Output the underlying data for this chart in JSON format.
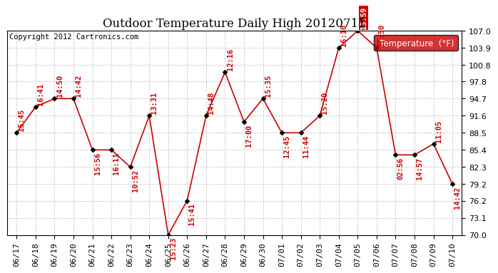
{
  "title": "Outdoor Temperature Daily High 20120711",
  "copyright": "Copyright 2012 Cartronics.com",
  "legend_label": "Temperature  (°F)",
  "legend_bg": "#cc0000",
  "legend_text_color": "#ffffff",
  "background_color": "#ffffff",
  "plot_bg": "#ffffff",
  "line_color": "#cc0000",
  "marker_color": "#000000",
  "label_color": "#cc0000",
  "grid_color": "#c8c8c8",
  "dates": [
    "06/17",
    "06/18",
    "06/19",
    "06/20",
    "06/21",
    "06/22",
    "06/23",
    "06/24",
    "06/25",
    "06/26",
    "06/27",
    "06/28",
    "06/29",
    "06/30",
    "07/01",
    "07/02",
    "07/03",
    "07/04",
    "07/05",
    "07/06",
    "07/07",
    "07/08",
    "07/09",
    "07/10"
  ],
  "values": [
    88.5,
    93.2,
    94.7,
    94.7,
    85.4,
    85.4,
    82.3,
    91.6,
    70.0,
    76.2,
    91.6,
    99.5,
    90.5,
    94.7,
    88.5,
    88.5,
    91.6,
    103.9,
    107.0,
    103.9,
    84.5,
    84.5,
    86.5,
    79.2
  ],
  "time_labels": [
    "15:45",
    "16:41",
    "14:50",
    "14:42",
    "15:56",
    "16:11",
    "10:52",
    "13:31",
    "15:23",
    "15:41",
    "14:48",
    "12:16",
    "17:00",
    "15:35",
    "12:45",
    "11:44",
    "15:20",
    "16:10",
    "15:59",
    "12:50",
    "02:56",
    "14:57",
    "11:05",
    "14:42"
  ],
  "label_above": [
    true,
    true,
    true,
    true,
    false,
    false,
    false,
    true,
    false,
    false,
    true,
    true,
    false,
    true,
    false,
    false,
    true,
    true,
    true,
    true,
    false,
    false,
    true,
    false
  ],
  "ylim_min": 70.0,
  "ylim_max": 107.0,
  "yticks": [
    70.0,
    73.1,
    76.2,
    79.2,
    82.3,
    85.4,
    88.5,
    91.6,
    94.7,
    97.8,
    100.8,
    103.9,
    107.0
  ],
  "title_fontsize": 12,
  "copyright_fontsize": 7.5,
  "label_fontsize": 7.5,
  "tick_fontsize": 8
}
